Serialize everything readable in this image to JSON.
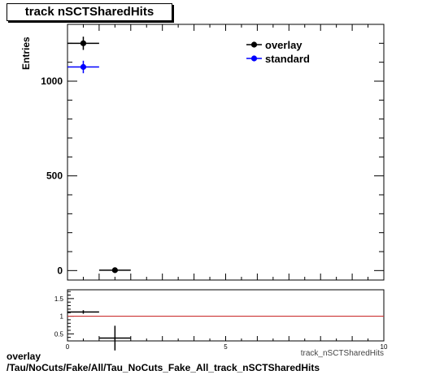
{
  "chart_data": {
    "type": "scatter",
    "title": "track nSCTSharedHits",
    "ylabel": "Entries",
    "xlabel": "track_nSCTSharedHits",
    "xlim": [
      0,
      10
    ],
    "ylim": [
      -50,
      1300
    ],
    "x_ticks": [
      "0",
      "5",
      "10"
    ],
    "y_ticks": [
      "0",
      "500",
      "1000"
    ],
    "series": [
      {
        "name": "overlay",
        "color": "#000000",
        "points": [
          {
            "x": 0.5,
            "y": 1200,
            "xerr": 0.5,
            "yerr": 35
          },
          {
            "x": 1.5,
            "y": 2,
            "xerr": 0.5,
            "yerr": 2
          }
        ]
      },
      {
        "name": "standard",
        "color": "#0000ff",
        "points": [
          {
            "x": 0.5,
            "y": 1075,
            "xerr": 0.5,
            "yerr": 33
          }
        ]
      }
    ],
    "legend": {
      "placement": "top-right"
    },
    "ratio": {
      "ylim": [
        0.3,
        1.75
      ],
      "y_ticks": [
        "0.5",
        "1",
        "1.5"
      ],
      "reference_line": 1.0,
      "reference_color": "#cc3333",
      "points": [
        {
          "x": 0.5,
          "y": 1.12,
          "xerr": 0.5,
          "yerr": 0.05
        },
        {
          "x": 1.5,
          "y": 0.38,
          "xerr": 0.5,
          "yerr": 0.35
        }
      ]
    }
  },
  "footer": {
    "line1": "overlay",
    "line2": "/Tau/NoCuts/Fake/All/Tau_NoCuts_Fake_All_track_nSCTSharedHits"
  }
}
